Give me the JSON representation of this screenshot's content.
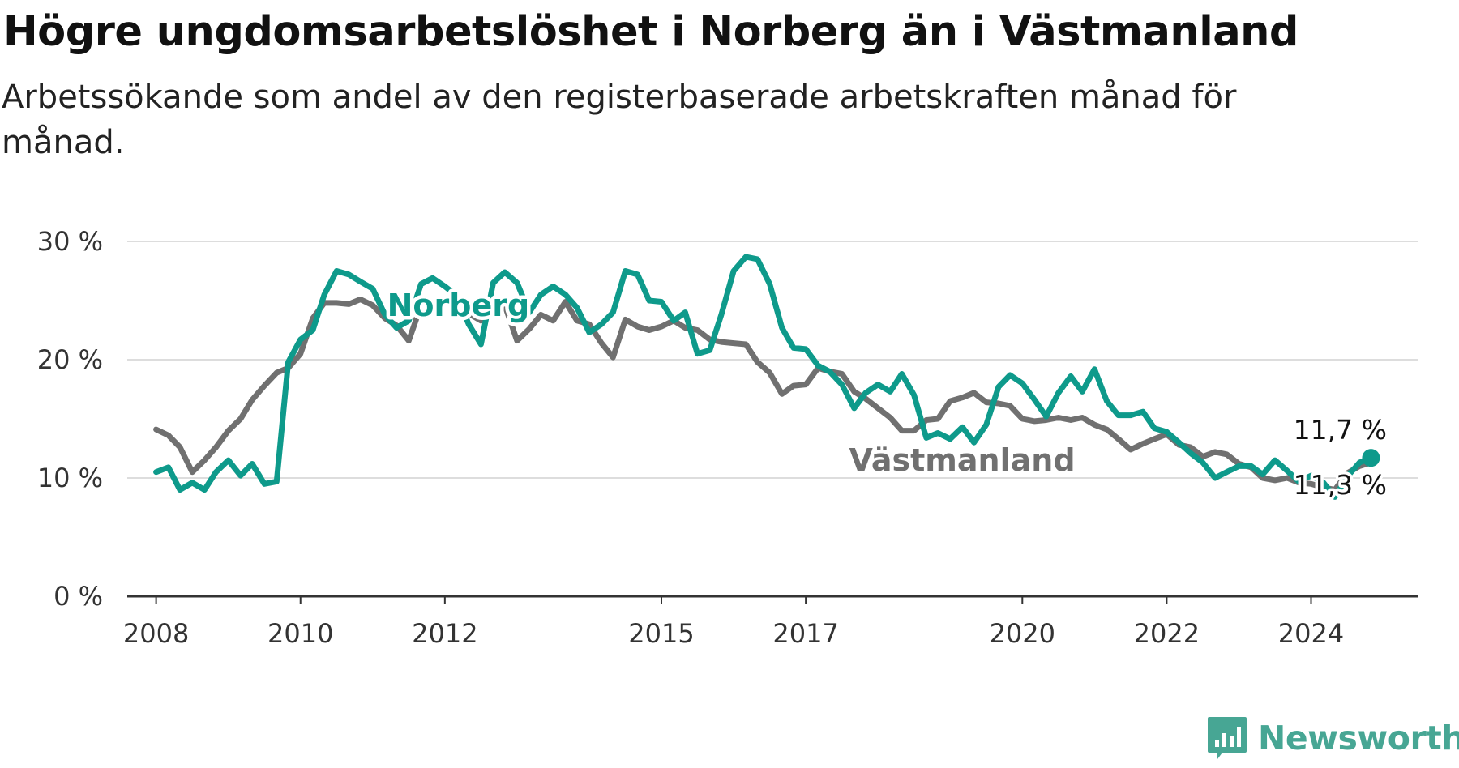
{
  "title": "Högre ungdomsarbetslöshet i Norberg än i Västmanland",
  "subtitle": "Arbetssökande som andel av den registerbaserade arbetskraften månad för månad.",
  "brand": "Newsworthy",
  "colors": {
    "norberg": "#0e9a8b",
    "vastmanland": "#707070",
    "grid": "#dddddd",
    "axis": "#333333",
    "brand": "#47a694"
  },
  "chart_data": {
    "type": "line",
    "title": "Högre ungdomsarbetslöshet i Norberg än i Västmanland",
    "subtitle": "Arbetssökande som andel av den registerbaserade arbetskraften månad för månad.",
    "xlabel": "",
    "ylabel": "",
    "xlim": [
      2007.6,
      2025.6
    ],
    "ylim": [
      0,
      30
    ],
    "grid": true,
    "y_ticks": [
      0,
      10,
      20,
      30
    ],
    "y_tick_labels": [
      "0 %",
      "10 %",
      "20 %",
      "30 %"
    ],
    "x_ticks": [
      2008,
      2010,
      2012,
      2015,
      2017,
      2020,
      2022,
      2024
    ],
    "x_tick_labels": [
      "2008",
      "2010",
      "2012",
      "2015",
      "2017",
      "2020",
      "2022",
      "2024"
    ],
    "series": [
      {
        "name": "Västmanland",
        "label_pos": [
          2017.6,
          10.6
        ],
        "end_label": "11,3 %",
        "values": [
          [
            2008.0,
            14.1
          ],
          [
            2008.17,
            13.6
          ],
          [
            2008.33,
            12.6
          ],
          [
            2008.5,
            10.5
          ],
          [
            2008.67,
            11.5
          ],
          [
            2008.83,
            12.6
          ],
          [
            2009.0,
            14.0
          ],
          [
            2009.17,
            15.0
          ],
          [
            2009.33,
            16.6
          ],
          [
            2009.5,
            17.8
          ],
          [
            2009.67,
            18.9
          ],
          [
            2009.83,
            19.3
          ],
          [
            2010.0,
            20.5
          ],
          [
            2010.17,
            23.5
          ],
          [
            2010.33,
            24.8
          ],
          [
            2010.5,
            24.8
          ],
          [
            2010.67,
            24.7
          ],
          [
            2010.83,
            25.1
          ],
          [
            2011.0,
            24.6
          ],
          [
            2011.17,
            23.5
          ],
          [
            2011.33,
            22.9
          ],
          [
            2011.5,
            21.6
          ],
          [
            2011.67,
            24.6
          ],
          [
            2011.83,
            24.3
          ],
          [
            2012.0,
            25.0
          ],
          [
            2012.17,
            24.5
          ],
          [
            2012.33,
            23.9
          ],
          [
            2012.5,
            23.3
          ],
          [
            2012.67,
            24.9
          ],
          [
            2012.83,
            24.6
          ],
          [
            2013.0,
            21.6
          ],
          [
            2013.17,
            22.6
          ],
          [
            2013.33,
            23.8
          ],
          [
            2013.5,
            23.3
          ],
          [
            2013.67,
            24.9
          ],
          [
            2013.83,
            23.3
          ],
          [
            2014.0,
            23.0
          ],
          [
            2014.17,
            21.4
          ],
          [
            2014.33,
            20.2
          ],
          [
            2014.5,
            23.4
          ],
          [
            2014.67,
            22.8
          ],
          [
            2014.83,
            22.5
          ],
          [
            2015.0,
            22.8
          ],
          [
            2015.17,
            23.3
          ],
          [
            2015.33,
            22.7
          ],
          [
            2015.5,
            22.5
          ],
          [
            2015.67,
            21.7
          ],
          [
            2015.83,
            21.5
          ],
          [
            2016.0,
            21.4
          ],
          [
            2016.17,
            21.3
          ],
          [
            2016.33,
            19.8
          ],
          [
            2016.5,
            18.9
          ],
          [
            2016.67,
            17.1
          ],
          [
            2016.83,
            17.8
          ],
          [
            2017.0,
            17.9
          ],
          [
            2017.17,
            19.3
          ],
          [
            2017.33,
            19.0
          ],
          [
            2017.5,
            18.8
          ],
          [
            2017.67,
            17.3
          ],
          [
            2017.83,
            16.7
          ],
          [
            2018.0,
            15.9
          ],
          [
            2018.17,
            15.1
          ],
          [
            2018.33,
            14.0
          ],
          [
            2018.5,
            14.0
          ],
          [
            2018.67,
            14.9
          ],
          [
            2018.83,
            15.0
          ],
          [
            2019.0,
            16.5
          ],
          [
            2019.17,
            16.8
          ],
          [
            2019.33,
            17.2
          ],
          [
            2019.5,
            16.4
          ],
          [
            2019.67,
            16.3
          ],
          [
            2019.83,
            16.1
          ],
          [
            2020.0,
            15.0
          ],
          [
            2020.17,
            14.8
          ],
          [
            2020.33,
            14.9
          ],
          [
            2020.5,
            15.1
          ],
          [
            2020.67,
            14.9
          ],
          [
            2020.83,
            15.1
          ],
          [
            2021.0,
            14.5
          ],
          [
            2021.17,
            14.1
          ],
          [
            2021.33,
            13.3
          ],
          [
            2021.5,
            12.4
          ],
          [
            2021.67,
            12.9
          ],
          [
            2021.83,
            13.3
          ],
          [
            2022.0,
            13.7
          ],
          [
            2022.17,
            12.8
          ],
          [
            2022.33,
            12.6
          ],
          [
            2022.5,
            11.8
          ],
          [
            2022.67,
            12.2
          ],
          [
            2022.83,
            12.0
          ],
          [
            2023.0,
            11.2
          ],
          [
            2023.17,
            10.9
          ],
          [
            2023.33,
            10.0
          ],
          [
            2023.5,
            9.8
          ],
          [
            2023.67,
            10.0
          ],
          [
            2023.83,
            9.6
          ],
          [
            2024.0,
            9.5
          ],
          [
            2024.17,
            9.2
          ],
          [
            2024.33,
            9.0
          ],
          [
            2024.5,
            10.4
          ],
          [
            2024.67,
            11.0
          ],
          [
            2024.83,
            11.3
          ]
        ]
      },
      {
        "name": "Norberg",
        "label_pos": [
          2011.2,
          23.7
        ],
        "end_label": "11,7 %",
        "values": [
          [
            2008.0,
            10.5
          ],
          [
            2008.17,
            10.9
          ],
          [
            2008.33,
            9.0
          ],
          [
            2008.5,
            9.6
          ],
          [
            2008.67,
            9.0
          ],
          [
            2008.83,
            10.5
          ],
          [
            2009.0,
            11.5
          ],
          [
            2009.17,
            10.2
          ],
          [
            2009.33,
            11.2
          ],
          [
            2009.5,
            9.5
          ],
          [
            2009.67,
            9.7
          ],
          [
            2009.83,
            19.8
          ],
          [
            2010.0,
            21.7
          ],
          [
            2010.17,
            22.5
          ],
          [
            2010.33,
            25.5
          ],
          [
            2010.5,
            27.5
          ],
          [
            2010.67,
            27.2
          ],
          [
            2010.83,
            26.6
          ],
          [
            2011.0,
            26.0
          ],
          [
            2011.17,
            23.8
          ],
          [
            2011.33,
            22.7
          ],
          [
            2011.5,
            23.3
          ],
          [
            2011.67,
            26.4
          ],
          [
            2011.83,
            26.9
          ],
          [
            2012.0,
            26.2
          ],
          [
            2012.17,
            25.4
          ],
          [
            2012.33,
            23.0
          ],
          [
            2012.5,
            21.3
          ],
          [
            2012.67,
            26.5
          ],
          [
            2012.83,
            27.4
          ],
          [
            2013.0,
            26.5
          ],
          [
            2013.17,
            24.0
          ],
          [
            2013.33,
            25.5
          ],
          [
            2013.5,
            26.2
          ],
          [
            2013.67,
            25.5
          ],
          [
            2013.83,
            24.4
          ],
          [
            2014.0,
            22.3
          ],
          [
            2014.17,
            23.0
          ],
          [
            2014.33,
            24.0
          ],
          [
            2014.5,
            27.5
          ],
          [
            2014.67,
            27.2
          ],
          [
            2014.83,
            25.0
          ],
          [
            2015.0,
            24.9
          ],
          [
            2015.17,
            23.3
          ],
          [
            2015.33,
            24.0
          ],
          [
            2015.5,
            20.5
          ],
          [
            2015.67,
            20.8
          ],
          [
            2015.83,
            23.8
          ],
          [
            2016.0,
            27.5
          ],
          [
            2016.17,
            28.7
          ],
          [
            2016.33,
            28.5
          ],
          [
            2016.5,
            26.4
          ],
          [
            2016.67,
            22.7
          ],
          [
            2016.83,
            21.0
          ],
          [
            2017.0,
            20.9
          ],
          [
            2017.17,
            19.5
          ],
          [
            2017.33,
            19.0
          ],
          [
            2017.5,
            17.9
          ],
          [
            2017.67,
            15.9
          ],
          [
            2017.83,
            17.2
          ],
          [
            2018.0,
            17.9
          ],
          [
            2018.17,
            17.3
          ],
          [
            2018.33,
            18.8
          ],
          [
            2018.5,
            17.0
          ],
          [
            2018.67,
            13.4
          ],
          [
            2018.83,
            13.8
          ],
          [
            2019.0,
            13.3
          ],
          [
            2019.17,
            14.3
          ],
          [
            2019.33,
            13.0
          ],
          [
            2019.5,
            14.5
          ],
          [
            2019.67,
            17.7
          ],
          [
            2019.83,
            18.7
          ],
          [
            2020.0,
            18.0
          ],
          [
            2020.17,
            16.6
          ],
          [
            2020.33,
            15.2
          ],
          [
            2020.5,
            17.2
          ],
          [
            2020.67,
            18.6
          ],
          [
            2020.83,
            17.3
          ],
          [
            2021.0,
            19.2
          ],
          [
            2021.17,
            16.5
          ],
          [
            2021.33,
            15.3
          ],
          [
            2021.5,
            15.3
          ],
          [
            2021.67,
            15.6
          ],
          [
            2021.83,
            14.2
          ],
          [
            2022.0,
            13.9
          ],
          [
            2022.17,
            13.0
          ],
          [
            2022.33,
            12.1
          ],
          [
            2022.5,
            11.3
          ],
          [
            2022.67,
            10.0
          ],
          [
            2022.83,
            10.5
          ],
          [
            2023.0,
            11.0
          ],
          [
            2023.17,
            11.0
          ],
          [
            2023.33,
            10.3
          ],
          [
            2023.5,
            11.5
          ],
          [
            2023.67,
            10.6
          ],
          [
            2023.83,
            9.7
          ],
          [
            2024.0,
            10.2
          ],
          [
            2024.17,
            9.6
          ],
          [
            2024.33,
            8.4
          ],
          [
            2024.5,
            10.1
          ],
          [
            2024.67,
            11.3
          ],
          [
            2024.83,
            11.7
          ]
        ]
      }
    ]
  }
}
